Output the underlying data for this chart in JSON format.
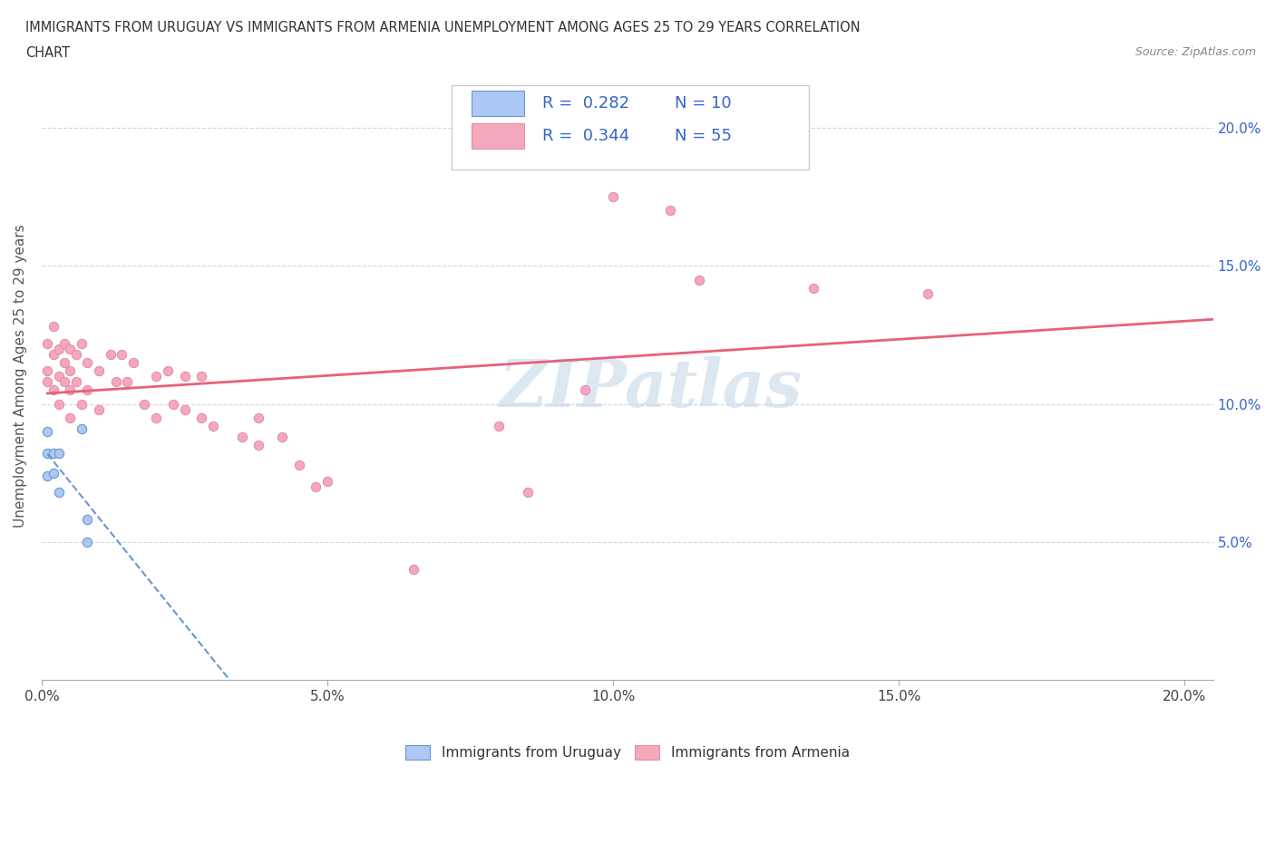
{
  "title_line1": "IMMIGRANTS FROM URUGUAY VS IMMIGRANTS FROM ARMENIA UNEMPLOYMENT AMONG AGES 25 TO 29 YEARS CORRELATION",
  "title_line2": "CHART",
  "source_text": "Source: ZipAtlas.com",
  "ylabel": "Unemployment Among Ages 25 to 29 years",
  "xlim": [
    0.0,
    0.205
  ],
  "ylim": [
    0.0,
    0.22
  ],
  "xtick_values": [
    0.0,
    0.05,
    0.1,
    0.15,
    0.2
  ],
  "xtick_labels": [
    "0.0%",
    "5.0%",
    "10.0%",
    "15.0%",
    "20.0%"
  ],
  "ytick_values": [
    0.05,
    0.1,
    0.15,
    0.2
  ],
  "ytick_labels": [
    "5.0%",
    "10.0%",
    "15.0%",
    "20.0%"
  ],
  "legend_r1": "R = 0.282",
  "legend_n1": "N = 10",
  "legend_r2": "R = 0.344",
  "legend_n2": "N = 55",
  "color_uruguay": "#adc8f5",
  "color_armenia": "#f5a8bc",
  "color_trendline_uruguay": "#6699cc",
  "color_trendline_armenia": "#e8607a",
  "watermark_color": "#c5d8ea",
  "uruguay_points_x": [
    0.001,
    0.001,
    0.001,
    0.002,
    0.002,
    0.003,
    0.003,
    0.007,
    0.008,
    0.008
  ],
  "uruguay_points_y": [
    0.09,
    0.082,
    0.074,
    0.082,
    0.075,
    0.082,
    0.068,
    0.091,
    0.058,
    0.05
  ],
  "armenia_points_x": [
    0.001,
    0.001,
    0.001,
    0.002,
    0.002,
    0.002,
    0.003,
    0.003,
    0.003,
    0.004,
    0.004,
    0.004,
    0.005,
    0.005,
    0.005,
    0.005,
    0.006,
    0.006,
    0.007,
    0.007,
    0.008,
    0.008,
    0.01,
    0.01,
    0.012,
    0.013,
    0.014,
    0.015,
    0.016,
    0.018,
    0.02,
    0.02,
    0.022,
    0.023,
    0.025,
    0.025,
    0.028,
    0.028,
    0.03,
    0.035,
    0.038,
    0.038,
    0.042,
    0.045,
    0.048,
    0.05,
    0.065,
    0.08,
    0.085,
    0.095,
    0.1,
    0.11,
    0.115,
    0.135,
    0.155
  ],
  "armenia_points_y": [
    0.122,
    0.112,
    0.108,
    0.128,
    0.118,
    0.105,
    0.12,
    0.11,
    0.1,
    0.122,
    0.115,
    0.108,
    0.12,
    0.112,
    0.105,
    0.095,
    0.118,
    0.108,
    0.122,
    0.1,
    0.115,
    0.105,
    0.112,
    0.098,
    0.118,
    0.108,
    0.118,
    0.108,
    0.115,
    0.1,
    0.11,
    0.095,
    0.112,
    0.1,
    0.11,
    0.098,
    0.11,
    0.095,
    0.092,
    0.088,
    0.095,
    0.085,
    0.088,
    0.078,
    0.07,
    0.072,
    0.04,
    0.092,
    0.068,
    0.105,
    0.175,
    0.17,
    0.145,
    0.142,
    0.14
  ]
}
